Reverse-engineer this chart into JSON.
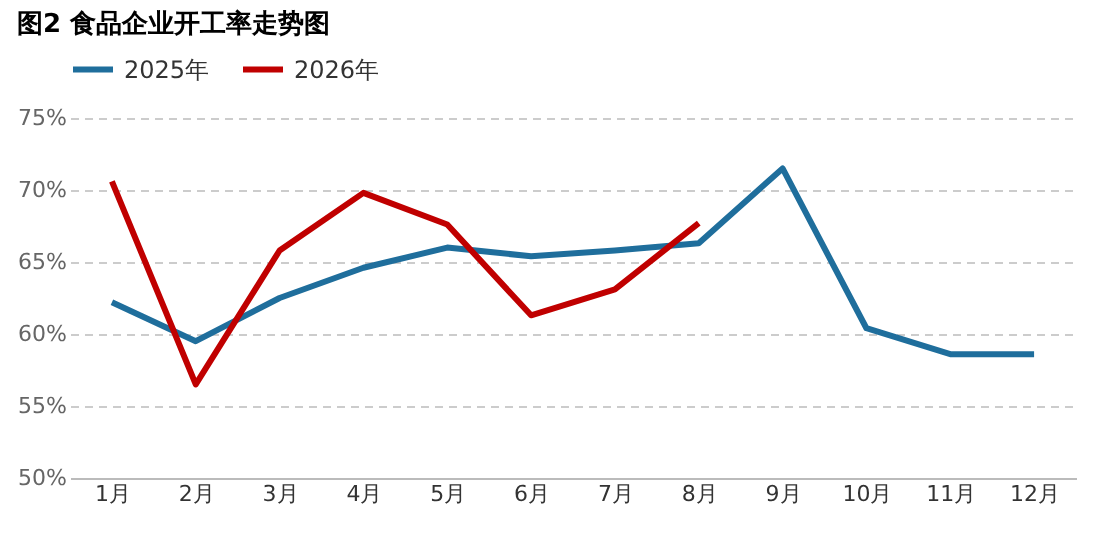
{
  "chart_data": {
    "type": "line",
    "title": "图2 食品企业开工率走势图",
    "categories": [
      "1月",
      "2月",
      "3月",
      "4月",
      "5月",
      "6月",
      "7月",
      "8月",
      "9月",
      "10月",
      "11月",
      "12月"
    ],
    "series": [
      {
        "name": "2025年",
        "color": "#1f6e9c",
        "values": [
          62.2,
          59.5,
          62.5,
          64.6,
          66.0,
          65.4,
          65.8,
          66.3,
          71.5,
          60.4,
          58.6,
          58.6
        ]
      },
      {
        "name": "2026年",
        "color": "#c00000",
        "values": [
          70.6,
          56.5,
          65.8,
          69.8,
          67.6,
          61.3,
          63.1,
          67.7,
          null,
          null,
          null,
          null
        ]
      }
    ],
    "ylim": [
      50,
      75
    ],
    "yticks": [
      {
        "value": 50,
        "label": "50%"
      },
      {
        "value": 55,
        "label": "55%"
      },
      {
        "value": 60,
        "label": "60%"
      },
      {
        "value": 65,
        "label": "65%"
      },
      {
        "value": 70,
        "label": "70%"
      },
      {
        "value": 75,
        "label": "75%"
      }
    ],
    "grid": "y",
    "legend": "top",
    "marker": "none",
    "line_style": "solid"
  }
}
